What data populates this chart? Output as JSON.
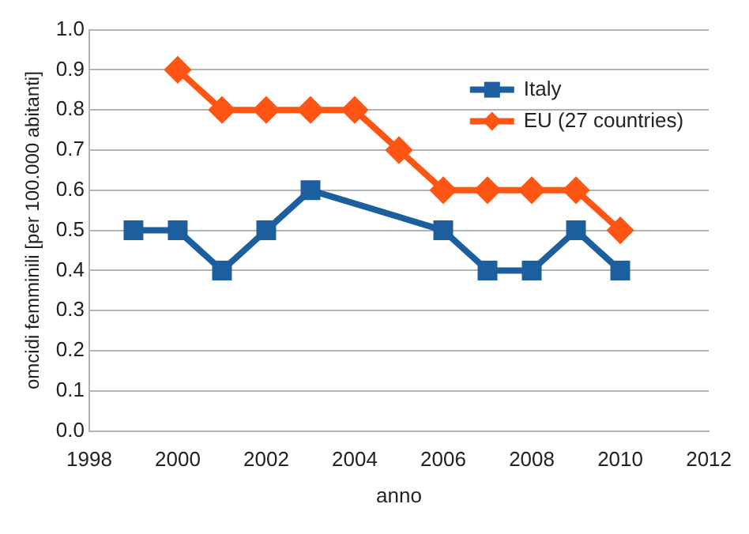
{
  "chart_data": {
    "type": "line",
    "xlabel": "anno",
    "ylabel": "omcidi femminili [per 100.000 abitanti]",
    "xlim": [
      1998,
      2012
    ],
    "xticks": [
      1998,
      2000,
      2002,
      2004,
      2006,
      2008,
      2010,
      2012
    ],
    "ylim": [
      0,
      1
    ],
    "yticks": [
      {
        "value": 0,
        "label": "0.0"
      },
      0.1,
      0.2,
      0.3,
      0.4,
      0.5,
      0.6,
      0.7,
      0.8,
      0.9,
      {
        "value": 1,
        "label": "1.0"
      }
    ],
    "grid": "y",
    "legend": "top right",
    "line_style": "solid",
    "series": [
      {
        "name": "Italy",
        "color": "#1c5e9e",
        "marker": "square",
        "x": [
          1999,
          2000,
          2001,
          2002,
          2003,
          2006,
          2007,
          2008,
          2009,
          2010
        ],
        "values": [
          0.5,
          0.5,
          0.4,
          0.5,
          0.6,
          0.5,
          0.4,
          0.4,
          0.5,
          0.4
        ]
      },
      {
        "name": "EU (27 countries)",
        "color": "#ff5514",
        "marker": "diamond",
        "x": [
          2000,
          2001,
          2002,
          2003,
          2004,
          2005,
          2006,
          2007,
          2008,
          2009,
          2010
        ],
        "values": [
          0.9,
          0.8,
          0.8,
          0.8,
          0.8,
          0.7,
          0.6,
          0.6,
          0.6,
          0.6,
          0.5
        ]
      }
    ]
  }
}
